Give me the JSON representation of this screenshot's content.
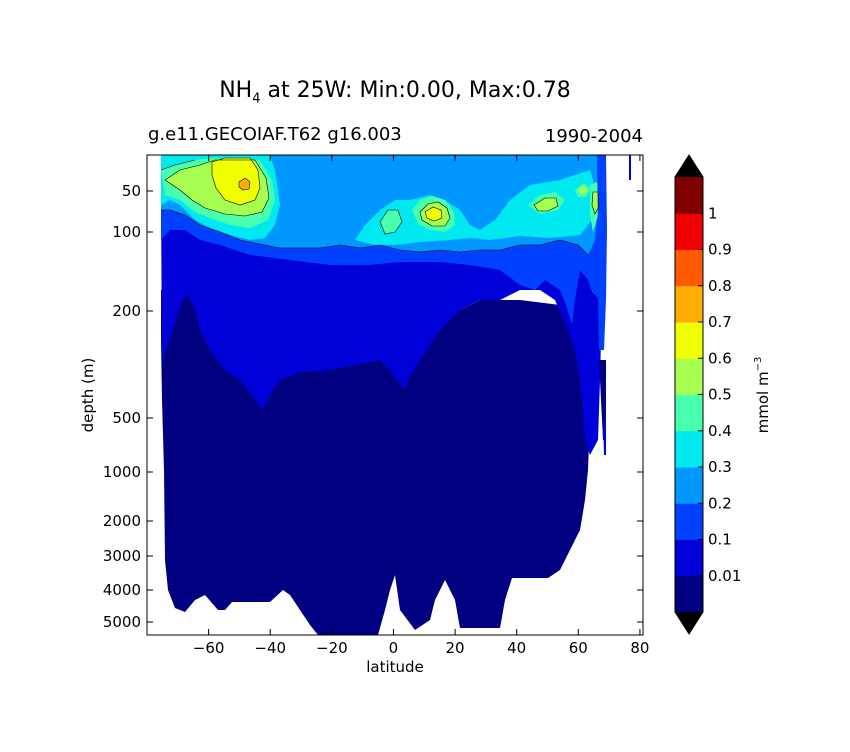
{
  "chart_data": {
    "type": "contour",
    "title_prefix": "NH",
    "title_subscript": "4",
    "title_suffix": " at 25W: Min:0.00, Max:0.78",
    "subtitle_left": "g.e11.GECOIAF.T62 g16.003",
    "subtitle_right": "1990-2004",
    "xlabel": "latitude",
    "ylabel": "depth (m)",
    "xlim": [
      -80,
      81
    ],
    "x_ticks": [
      -60,
      -40,
      -20,
      0,
      20,
      40,
      60,
      80
    ],
    "x_tick_labels": [
      "−60",
      "−40",
      "−20",
      "0",
      "20",
      "40",
      "60",
      "80"
    ],
    "y_scale": "nonlinear depth",
    "y_ticks": [
      50,
      100,
      200,
      500,
      1000,
      2000,
      3000,
      4000,
      5000
    ],
    "y_tick_labels": [
      "50",
      "100",
      "200",
      "500",
      "1000",
      "2000",
      "3000",
      "4000",
      "5000"
    ],
    "colorbar": {
      "label": "mmol m",
      "label_exponent": "−3",
      "levels": [
        0,
        0.01,
        0.1,
        0.2,
        0.3,
        0.4,
        0.5,
        0.6,
        0.7,
        0.8,
        0.9,
        1.0,
        1.1
      ],
      "tick_labels": [
        "0.01",
        "0.1",
        "0.2",
        "0.3",
        "0.4",
        "0.5",
        "0.6",
        "0.7",
        "0.8",
        "0.9",
        "1"
      ],
      "colors": [
        "#000080",
        "#0000d8",
        "#0040ff",
        "#0098ff",
        "#00e8f0",
        "#48ffae",
        "#a6ff50",
        "#f0ff00",
        "#ffae00",
        "#ff5a00",
        "#f00000",
        "#800000"
      ],
      "extend_low_color": "#000000",
      "extend_high_color": "#000000"
    },
    "field_min": 0.0,
    "field_max": 0.78
  }
}
